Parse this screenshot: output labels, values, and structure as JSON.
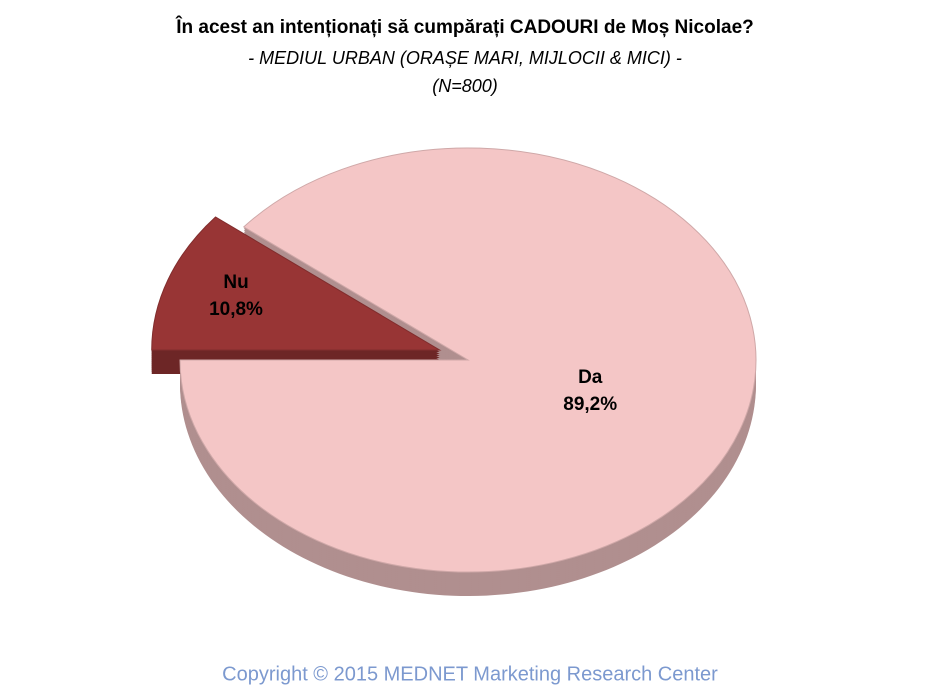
{
  "chart_data": {
    "type": "pie",
    "title": "În acest an intenționați să cumpărați CADOURI de Moș Nicolae?",
    "subtitle": "- MEDIUL URBAN (ORAȘE MARI, MIJLOCII & MICI) -",
    "sample": "(N=800)",
    "categories": [
      "Da",
      "Nu"
    ],
    "values": [
      89.2,
      10.8
    ],
    "value_labels": [
      "89,2%",
      "10,8%"
    ],
    "colors": [
      "#f4c6c6",
      "#983535"
    ],
    "footer": "Copyright  ©  2015 MEDNET Marketing Research Center"
  }
}
